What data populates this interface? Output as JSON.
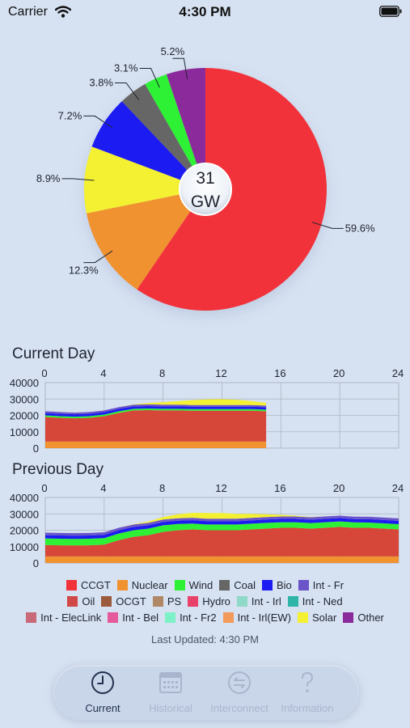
{
  "status_bar": {
    "carrier": "Carrier",
    "time": "4:30 PM"
  },
  "pie": {
    "center_value": "31",
    "center_unit": "GW",
    "slices": [
      {
        "name": "CCGT",
        "percent": 59.6,
        "label": "59.6%",
        "color": "#f2323a"
      },
      {
        "name": "Nuclear",
        "percent": 12.3,
        "label": "12.3%",
        "color": "#f19231"
      },
      {
        "name": "Solar",
        "percent": 8.9,
        "label": "8.9%",
        "color": "#f4f032"
      },
      {
        "name": "Bio",
        "percent": 7.2,
        "label": "7.2%",
        "color": "#1c1cf2"
      },
      {
        "name": "Coal",
        "percent": 3.8,
        "label": "3.8%",
        "color": "#666666"
      },
      {
        "name": "Wind",
        "percent": 3.1,
        "label": "3.1%",
        "color": "#2ef034"
      },
      {
        "name": "Other",
        "percent": 5.2,
        "label": "5.2%",
        "color": "#8b2a9a"
      }
    ]
  },
  "chart_data": [
    {
      "type": "area",
      "title": "Current Day",
      "x_ticks": [
        "0",
        "4",
        "8",
        "12",
        "16",
        "20",
        "24"
      ],
      "y_ticks": [
        "0",
        "10000",
        "20000",
        "30000",
        "40000"
      ],
      "xlim": [
        0,
        24
      ],
      "ylim": [
        0,
        40000
      ],
      "x": [
        0,
        1,
        2,
        3,
        4,
        5,
        6,
        7,
        8,
        9,
        10,
        11,
        12,
        13,
        14,
        15
      ],
      "series": [
        {
          "name": "Nuclear",
          "color": "#f19231",
          "values": [
            4000,
            4000,
            4000,
            4000,
            4000,
            4000,
            4000,
            4000,
            4000,
            4000,
            4000,
            4000,
            4000,
            4000,
            4000,
            4000
          ]
        },
        {
          "name": "CCGT",
          "color": "#d6473a",
          "values": [
            15000,
            14500,
            14200,
            14500,
            15500,
            17500,
            19000,
            19200,
            19000,
            19000,
            18800,
            18800,
            18800,
            18800,
            18800,
            18500
          ]
        },
        {
          "name": "Wind",
          "color": "#2ef034",
          "values": [
            1000,
            1000,
            1000,
            1000,
            1000,
            1000,
            1000,
            1000,
            1000,
            1000,
            1000,
            1000,
            1000,
            1000,
            1000,
            1000
          ]
        },
        {
          "name": "Bio",
          "color": "#1c1cf2",
          "values": [
            1500,
            1500,
            1500,
            1500,
            1500,
            1500,
            1500,
            1500,
            1500,
            1500,
            1500,
            1500,
            1500,
            1500,
            1500,
            1500
          ]
        },
        {
          "name": "Int - Fr",
          "color": "#6a54c8",
          "values": [
            1000,
            1000,
            1000,
            1000,
            1000,
            1000,
            1000,
            1000,
            1000,
            1000,
            1000,
            1000,
            1000,
            1000,
            1000,
            1000
          ]
        },
        {
          "name": "Solar",
          "color": "#f4f032",
          "values": [
            0,
            0,
            0,
            0,
            0,
            0,
            200,
            800,
            1500,
            2200,
            3000,
            3500,
            3600,
            3200,
            2500,
            1600
          ]
        }
      ]
    },
    {
      "type": "area",
      "title": "Previous Day",
      "x_ticks": [
        "0",
        "4",
        "8",
        "12",
        "16",
        "20",
        "24"
      ],
      "y_ticks": [
        "0",
        "10000",
        "20000",
        "30000",
        "40000"
      ],
      "xlim": [
        0,
        24
      ],
      "ylim": [
        0,
        40000
      ],
      "x": [
        0,
        1,
        2,
        3,
        4,
        5,
        6,
        7,
        8,
        9,
        10,
        11,
        12,
        13,
        14,
        15,
        16,
        17,
        18,
        19,
        20,
        21,
        22,
        23,
        24
      ],
      "series": [
        {
          "name": "Nuclear",
          "color": "#f19231",
          "values": [
            4000,
            4000,
            4000,
            4000,
            4000,
            4000,
            4000,
            4000,
            4000,
            4000,
            4000,
            4000,
            4000,
            4000,
            4000,
            4000,
            4000,
            4000,
            4000,
            4000,
            4000,
            4000,
            4000,
            4000,
            4000
          ]
        },
        {
          "name": "CCGT",
          "color": "#d6473a",
          "values": [
            7000,
            6800,
            6700,
            6800,
            7200,
            10000,
            12000,
            13000,
            15000,
            16000,
            16500,
            16000,
            16000,
            16000,
            16500,
            17000,
            17500,
            17500,
            17000,
            17500,
            18000,
            17500,
            17500,
            17000,
            16500
          ]
        },
        {
          "name": "Wind",
          "color": "#2ef034",
          "values": [
            4000,
            4000,
            4000,
            4000,
            4000,
            4000,
            4000,
            4000,
            4000,
            3800,
            3600,
            3500,
            3500,
            3500,
            3500,
            3500,
            3400,
            3400,
            3400,
            3400,
            3400,
            3300,
            3200,
            3200,
            3200
          ]
        },
        {
          "name": "Bio",
          "color": "#1c1cf2",
          "values": [
            2000,
            2000,
            2000,
            2000,
            2000,
            2000,
            2000,
            2000,
            2000,
            2000,
            2000,
            2000,
            2000,
            2000,
            2000,
            2000,
            2000,
            2000,
            2000,
            2000,
            2000,
            2000,
            2000,
            2000,
            2000
          ]
        },
        {
          "name": "Int - Fr",
          "color": "#6a54c8",
          "values": [
            1500,
            1500,
            1500,
            1500,
            1500,
            1500,
            1500,
            1500,
            1500,
            1500,
            1500,
            1500,
            1500,
            1500,
            1500,
            1500,
            1500,
            1500,
            1500,
            1500,
            1500,
            1500,
            1500,
            1500,
            1500
          ]
        },
        {
          "name": "Solar",
          "color": "#f4f032",
          "values": [
            0,
            0,
            0,
            0,
            0,
            0,
            200,
            800,
            1500,
            2500,
            3000,
            3500,
            3500,
            3000,
            2500,
            1800,
            1000,
            500,
            200,
            0,
            0,
            0,
            0,
            0,
            0
          ]
        }
      ]
    }
  ],
  "legend": {
    "rows": [
      [
        {
          "label": "CCGT",
          "color": "#f2323a"
        },
        {
          "label": "Nuclear",
          "color": "#f19231"
        },
        {
          "label": "Wind",
          "color": "#2ef034"
        },
        {
          "label": "Coal",
          "color": "#666666"
        },
        {
          "label": "Bio",
          "color": "#1c1cf2"
        },
        {
          "label": "Int - Fr",
          "color": "#6a54c8"
        }
      ],
      [
        {
          "label": "Oil",
          "color": "#d04848"
        },
        {
          "label": "OCGT",
          "color": "#9c5a3c"
        },
        {
          "label": "PS",
          "color": "#b08868"
        },
        {
          "label": "Hydro",
          "color": "#e8416a"
        },
        {
          "label": "Int - Irl",
          "color": "#8fd9c9"
        },
        {
          "label": "Int - Ned",
          "color": "#2fb5a8"
        }
      ],
      [
        {
          "label": "Int - ElecLink",
          "color": "#c96a78"
        },
        {
          "label": "Int - Bel",
          "color": "#e55a9a"
        },
        {
          "label": "Int - Fr2",
          "color": "#7df2c8"
        },
        {
          "label": "Int - Irl(EW)",
          "color": "#f29a5a"
        },
        {
          "label": "Solar",
          "color": "#f4f032"
        },
        {
          "label": "Other",
          "color": "#8b2a9a"
        }
      ]
    ]
  },
  "last_updated": "Last Updated: 4:30 PM",
  "tabs": [
    {
      "label": "Current",
      "icon": "clock-icon",
      "active": true
    },
    {
      "label": "Historical",
      "icon": "calendar-icon",
      "active": false
    },
    {
      "label": "Interconnect",
      "icon": "exchange-icon",
      "active": false
    },
    {
      "label": "Information",
      "icon": "question-mark-icon",
      "active": false
    }
  ]
}
